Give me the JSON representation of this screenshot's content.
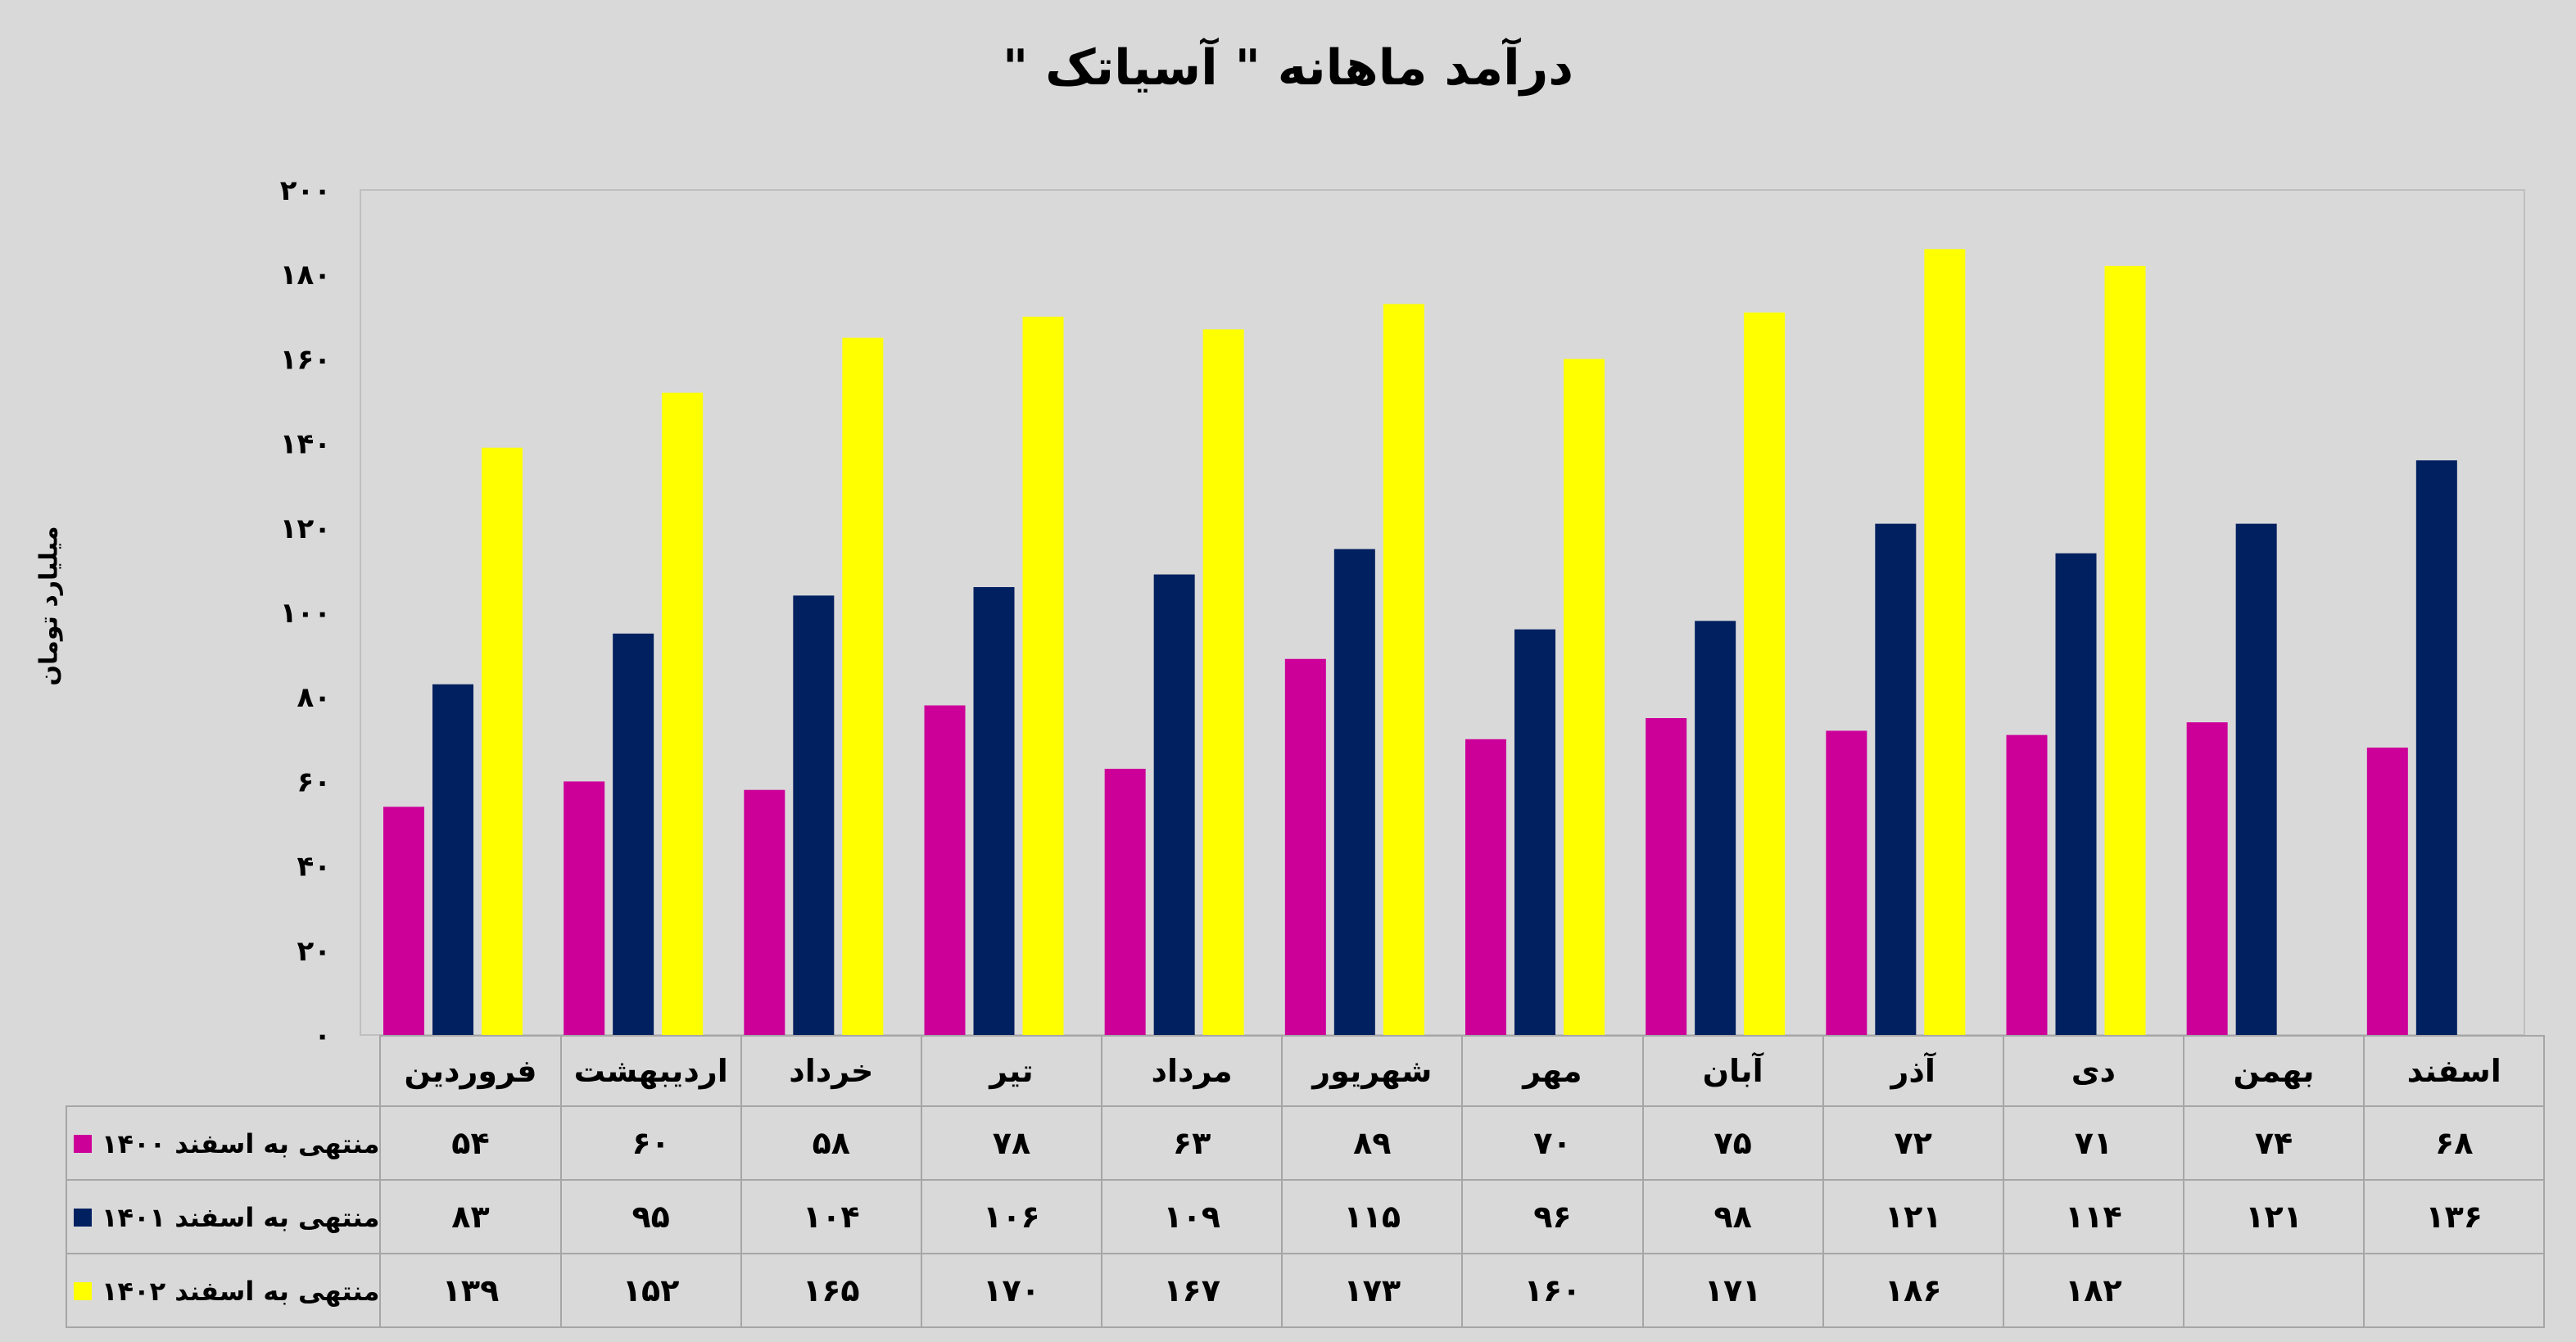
{
  "chart_data": {
    "type": "bar",
    "title": "درآمد ماهانه \" آسیاتک \"",
    "ylabel": "میلیارد تومان",
    "xlabel": "",
    "ylim": [
      0,
      200
    ],
    "yticks": [
      0,
      20,
      40,
      60,
      80,
      100,
      120,
      140,
      160,
      180,
      200
    ],
    "ytick_labels": [
      "۰",
      "۲۰",
      "۴۰",
      "۶۰",
      "۸۰",
      "۱۰۰",
      "۱۲۰",
      "۱۴۰",
      "۱۶۰",
      "۱۸۰",
      "۲۰۰"
    ],
    "grid": false,
    "legend": "data-table",
    "categories": [
      "فروردین",
      "اردیبهشت",
      "خرداد",
      "تیر",
      "مرداد",
      "شهریور",
      "مهر",
      "آبان",
      "آذر",
      "دی",
      "بهمن",
      "اسفند"
    ],
    "series": [
      {
        "name": "منتهی به اسفند ۱۴۰۰",
        "color": "#cc0099",
        "values": [
          54,
          60,
          58,
          78,
          63,
          89,
          70,
          75,
          72,
          71,
          74,
          68
        ],
        "labels": [
          "۵۴",
          "۶۰",
          "۵۸",
          "۷۸",
          "۶۳",
          "۸۹",
          "۷۰",
          "۷۵",
          "۷۲",
          "۷۱",
          "۷۴",
          "۶۸"
        ]
      },
      {
        "name": "منتهی به اسفند ۱۴۰۱",
        "color": "#002060",
        "values": [
          83,
          95,
          104,
          106,
          109,
          115,
          96,
          98,
          121,
          114,
          121,
          136
        ],
        "labels": [
          "۸۳",
          "۹۵",
          "۱۰۴",
          "۱۰۶",
          "۱۰۹",
          "۱۱۵",
          "۹۶",
          "۹۸",
          "۱۲۱",
          "۱۱۴",
          "۱۲۱",
          "۱۳۶"
        ]
      },
      {
        "name": "منتهی به اسفند ۱۴۰۲",
        "color": "#ffff00",
        "values": [
          139,
          152,
          165,
          170,
          167,
          173,
          160,
          171,
          186,
          182,
          null,
          null
        ],
        "labels": [
          "۱۳۹",
          "۱۵۲",
          "۱۶۵",
          "۱۷۰",
          "۱۶۷",
          "۱۷۳",
          "۱۶۰",
          "۱۷۱",
          "۱۸۶",
          "۱۸۲",
          "",
          ""
        ]
      }
    ]
  }
}
